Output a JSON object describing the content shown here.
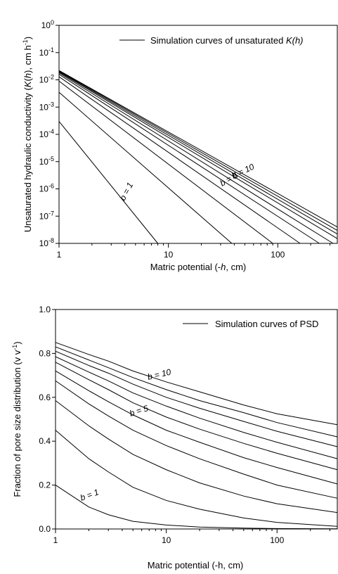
{
  "chart_data": [
    {
      "type": "line",
      "xlabel": "Matric potential (-h, cm)",
      "ylabel": "Unsaturated hydraulic conductivity (K(h), cm h^-1)",
      "xscale": "log",
      "yscale": "log",
      "xlim": [
        1,
        350
      ],
      "ylim": [
        1e-08,
        1
      ],
      "xticks": [
        1,
        10,
        100
      ],
      "xtick_labels": [
        "1",
        "10",
        "100"
      ],
      "yticks": [
        1,
        0.1,
        0.01,
        0.001,
        0.0001,
        1e-05,
        1e-06,
        1e-07,
        1e-08
      ],
      "ytick_labels": [
        {
          "base": "10",
          "exp": "0"
        },
        {
          "base": "10",
          "exp": "-1"
        },
        {
          "base": "10",
          "exp": "-2"
        },
        {
          "base": "10",
          "exp": "-3"
        },
        {
          "base": "10",
          "exp": "-4"
        },
        {
          "base": "10",
          "exp": "-5"
        },
        {
          "base": "10",
          "exp": "-6"
        },
        {
          "base": "10",
          "exp": "-7"
        },
        {
          "base": "10",
          "exp": "-8"
        }
      ],
      "grid": false,
      "legend": {
        "text": "Simulation curves of unsaturated K(h)",
        "placement": "top-right"
      },
      "annotations": [
        "b = 10",
        "b = 5",
        "b = 1"
      ],
      "series": [
        {
          "b": 1,
          "x": [
            1,
            8
          ],
          "y": [
            0.0003,
            1e-08
          ]
        },
        {
          "b": 2,
          "x": [
            1,
            38
          ],
          "y": [
            0.0035,
            1e-08
          ]
        },
        {
          "b": 3,
          "x": [
            1,
            90
          ],
          "y": [
            0.009,
            1e-08
          ]
        },
        {
          "b": 4,
          "x": [
            1,
            160
          ],
          "y": [
            0.013,
            1e-08
          ]
        },
        {
          "b": 5,
          "x": [
            1,
            240
          ],
          "y": [
            0.016,
            1e-08
          ]
        },
        {
          "b": 6,
          "x": [
            1,
            320
          ],
          "y": [
            0.018,
            1e-08
          ]
        },
        {
          "b": 7,
          "x": [
            1,
            350
          ],
          "y": [
            0.0195,
            1.5e-08
          ]
        },
        {
          "b": 8,
          "x": [
            1,
            350
          ],
          "y": [
            0.0205,
            2.2e-08
          ]
        },
        {
          "b": 9,
          "x": [
            1,
            350
          ],
          "y": [
            0.0215,
            3e-08
          ]
        },
        {
          "b": 10,
          "x": [
            1,
            350
          ],
          "y": [
            0.022,
            4e-08
          ]
        }
      ]
    },
    {
      "type": "line",
      "xlabel": "Matric potential (-h, cm)",
      "ylabel": "Fraction of pore size distribution (v v^-1)",
      "xscale": "log",
      "yscale": "linear",
      "xlim": [
        1,
        350
      ],
      "ylim": [
        0,
        1
      ],
      "xticks": [
        1,
        10,
        100
      ],
      "xtick_labels": [
        "1",
        "10",
        "100"
      ],
      "yticks": [
        0,
        0.2,
        0.4,
        0.6,
        0.8,
        1.0
      ],
      "ytick_labels": [
        "0.0",
        "0.2",
        "0.4",
        "0.6",
        "0.8",
        "1.0"
      ],
      "grid": false,
      "legend": {
        "text": "Simulation curves of PSD",
        "placement": "top-right"
      },
      "annotations": [
        "b = 10",
        "b = 5",
        "b = 1"
      ],
      "series": [
        {
          "b": 1,
          "x": [
            1,
            2,
            3,
            5,
            10,
            20,
            50,
            100,
            350
          ],
          "y": [
            0.2,
            0.1,
            0.065,
            0.035,
            0.018,
            0.009,
            0.004,
            0.002,
            0.001
          ]
        },
        {
          "b": 2,
          "x": [
            1,
            2,
            3,
            5,
            10,
            20,
            50,
            100,
            350
          ],
          "y": [
            0.45,
            0.32,
            0.26,
            0.19,
            0.13,
            0.09,
            0.05,
            0.03,
            0.012
          ]
        },
        {
          "b": 3,
          "x": [
            1,
            2,
            3,
            5,
            10,
            20,
            50,
            100,
            350
          ],
          "y": [
            0.585,
            0.47,
            0.41,
            0.34,
            0.27,
            0.21,
            0.15,
            0.115,
            0.075
          ]
        },
        {
          "b": 4,
          "x": [
            1,
            2,
            3,
            5,
            10,
            20,
            50,
            100,
            350
          ],
          "y": [
            0.675,
            0.57,
            0.515,
            0.45,
            0.38,
            0.32,
            0.25,
            0.2,
            0.14
          ]
        },
        {
          "b": 5,
          "x": [
            1,
            2,
            3,
            5,
            10,
            20,
            50,
            100,
            350
          ],
          "y": [
            0.72,
            0.63,
            0.58,
            0.52,
            0.45,
            0.395,
            0.325,
            0.28,
            0.205
          ]
        },
        {
          "b": 6,
          "x": [
            1,
            2,
            3,
            5,
            10,
            20,
            50,
            100,
            350
          ],
          "y": [
            0.76,
            0.68,
            0.635,
            0.575,
            0.51,
            0.455,
            0.39,
            0.345,
            0.27
          ]
        },
        {
          "b": 7,
          "x": [
            1,
            2,
            3,
            5,
            10,
            20,
            50,
            100,
            350
          ],
          "y": [
            0.785,
            0.715,
            0.675,
            0.62,
            0.56,
            0.505,
            0.44,
            0.395,
            0.32
          ]
        },
        {
          "b": 8,
          "x": [
            1,
            2,
            3,
            5,
            10,
            20,
            50,
            100,
            350
          ],
          "y": [
            0.81,
            0.745,
            0.71,
            0.66,
            0.6,
            0.55,
            0.49,
            0.445,
            0.375
          ]
        },
        {
          "b": 9,
          "x": [
            1,
            2,
            3,
            5,
            10,
            20,
            50,
            100,
            350
          ],
          "y": [
            0.83,
            0.77,
            0.735,
            0.69,
            0.635,
            0.585,
            0.53,
            0.485,
            0.42
          ]
        },
        {
          "b": 10,
          "x": [
            1,
            2,
            3,
            5,
            10,
            20,
            50,
            100,
            350
          ],
          "y": [
            0.85,
            0.795,
            0.765,
            0.72,
            0.67,
            0.625,
            0.565,
            0.525,
            0.475
          ]
        }
      ]
    }
  ]
}
